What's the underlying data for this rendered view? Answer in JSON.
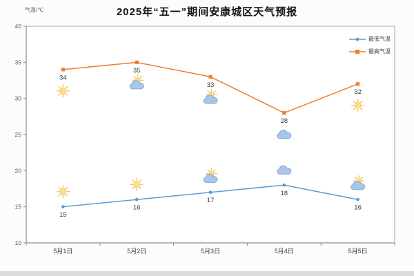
{
  "chart_data": {
    "type": "line",
    "title": "2025年“五一”期间安康城区天气预报",
    "ylabel": "气温/℃",
    "categories": [
      "5月1日",
      "5月2日",
      "5月3日",
      "5月4日",
      "5月5日"
    ],
    "series": [
      {
        "name": "最低气温",
        "color": "#5B9BD5",
        "marker": "circle",
        "values": [
          15,
          16,
          17,
          18,
          16
        ],
        "icons": [
          "sunny",
          "sunny",
          "partly-cloudy",
          "cloudy",
          "partly-cloudy"
        ],
        "icon_position": "above"
      },
      {
        "name": "最高气温",
        "color": "#ED7D31",
        "marker": "square",
        "values": [
          34,
          35,
          33,
          28,
          32
        ],
        "icons": [
          "sunny",
          "partly-cloudy",
          "partly-cloudy",
          "cloudy",
          "sunny"
        ],
        "icon_position": "below"
      }
    ],
    "ylim": [
      10,
      40
    ],
    "ytick_step": 5,
    "yticks": [
      10,
      15,
      20,
      25,
      30,
      35,
      40
    ],
    "grid": false,
    "legend_position": "top-right"
  },
  "colors": {
    "axis": "#8c8c8c",
    "plot_border": "#a6a6a6",
    "tick_text": "#595959",
    "data_label_text": "#3a3a3a",
    "sun_center": "#FCE08C",
    "sun_edge": "#F5C243",
    "sun_ray": "#F5C76B",
    "cloud_fill": "#A9C5E8",
    "cloud_stroke": "#7FA8D4"
  }
}
